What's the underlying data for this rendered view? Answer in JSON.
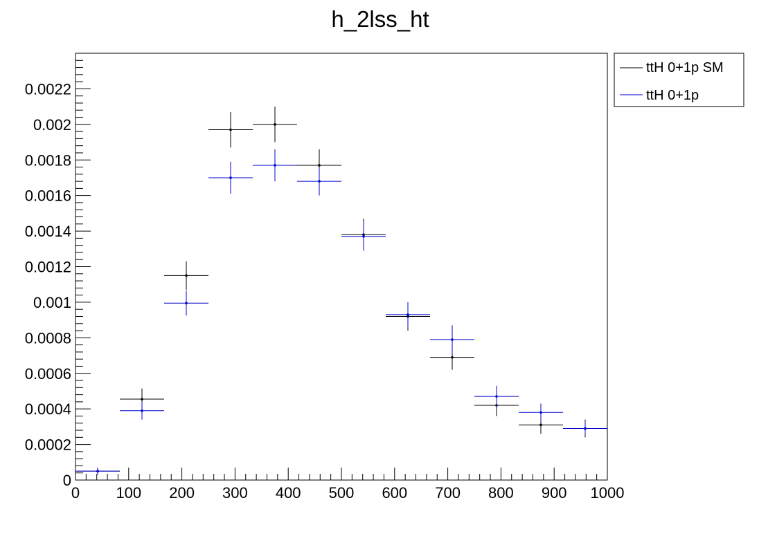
{
  "chart_data": {
    "type": "scatter",
    "title": "h_2lss_ht",
    "xlabel": "",
    "ylabel": "",
    "xlim": [
      0,
      1000
    ],
    "ylim": [
      0,
      0.0024
    ],
    "x_ticks": [
      0,
      100,
      200,
      300,
      400,
      500,
      600,
      700,
      800,
      900,
      1000
    ],
    "x_tick_labels": [
      "0",
      "100",
      "200",
      "300",
      "400",
      "500",
      "600",
      "700",
      "800",
      "900",
      "1000"
    ],
    "y_ticks": [
      0,
      0.0002,
      0.0004,
      0.0006,
      0.0008,
      0.001,
      0.0012,
      0.0014,
      0.0016,
      0.0018,
      0.002,
      0.0022
    ],
    "y_tick_labels": [
      "0",
      "0.0002",
      "0.0004",
      "0.0006",
      "0.0008",
      "0.001",
      "0.0012",
      "0.0014",
      "0.0016",
      "0.0018",
      "0.002",
      "0.0022"
    ],
    "grid": false,
    "legend_position": "top-right-outside",
    "bin_edges": [
      0,
      83.33,
      166.67,
      250,
      333.33,
      416.67,
      500,
      583.33,
      666.67,
      750,
      833.33,
      916.67,
      1000
    ],
    "series": [
      {
        "name": "ttH 0+1p SM",
        "color": "#000000",
        "values": [
          5e-05,
          0.000455,
          0.00115,
          0.00197,
          0.002,
          0.00177,
          0.00138,
          0.00092,
          0.00069,
          0.00042,
          0.00031,
          0.00029
        ],
        "errors": [
          2e-05,
          6e-05,
          8e-05,
          0.0001,
          0.0001,
          9e-05,
          9e-05,
          8e-05,
          7e-05,
          6e-05,
          5e-05,
          5e-05
        ]
      },
      {
        "name": "ttH 0+1p",
        "color": "#0000cc",
        "values": [
          5e-05,
          0.00039,
          0.000995,
          0.0017,
          0.00177,
          0.00168,
          0.00137,
          0.00093,
          0.00079,
          0.00047,
          0.00038,
          0.00029
        ],
        "errors": [
          2e-05,
          5e-05,
          7e-05,
          9e-05,
          9e-05,
          8e-05,
          8e-05,
          7e-05,
          8e-05,
          6e-05,
          5e-05,
          4e-05
        ]
      }
    ]
  }
}
